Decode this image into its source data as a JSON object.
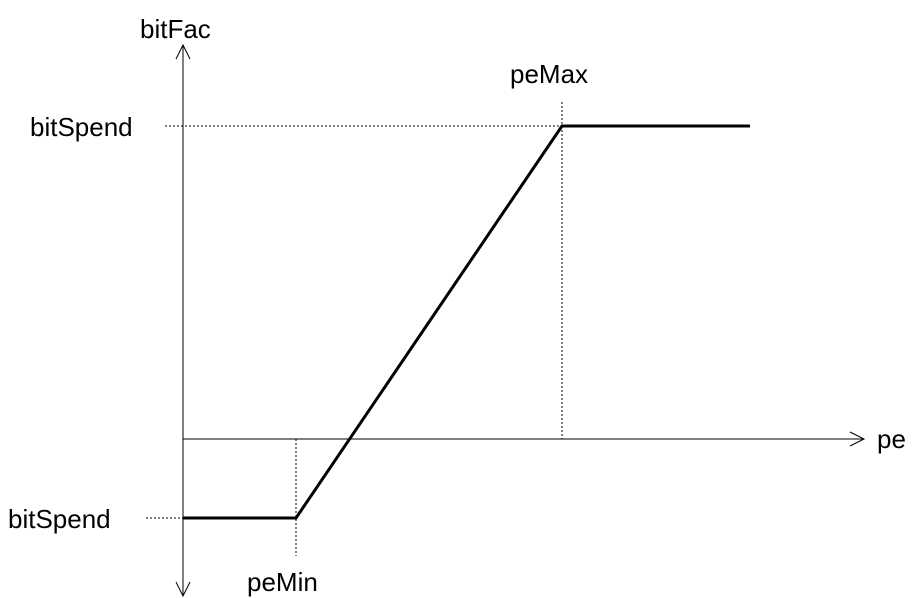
{
  "labels": {
    "y_axis": "bitFac",
    "x_axis": "pe",
    "upper_level": "bitSpend",
    "lower_level": "bitSpend",
    "pe_max": "peMax",
    "pe_min": "peMin"
  },
  "colors": {
    "line": "#000000",
    "background": "#ffffff"
  }
}
